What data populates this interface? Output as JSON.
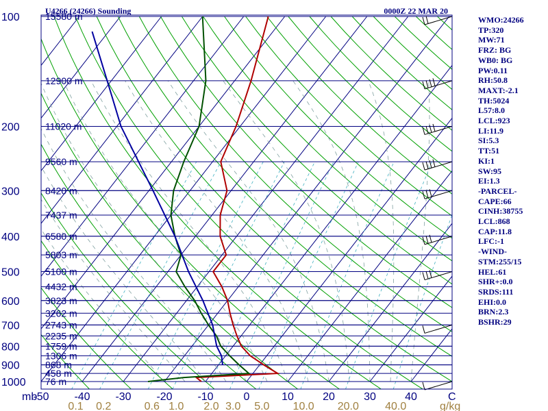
{
  "chart_data": {
    "type": "line",
    "title": "U4266 (24266) Sounding",
    "valid_time": "0000Z 22 MAR 20",
    "pressure_axis": {
      "unit_label": "mb",
      "ticks": [
        100,
        200,
        300,
        400,
        500,
        600,
        700,
        800,
        900,
        1000
      ],
      "range_mb": [
        100,
        1000
      ],
      "scale": "log"
    },
    "temperature_axis": {
      "ticks": [
        -50,
        -40,
        -30,
        -20,
        -10,
        0,
        10,
        20,
        30,
        40
      ],
      "unit_label": "C",
      "range_c_at_surface": [
        -50,
        50
      ]
    },
    "mixing_ratio_axis": {
      "unit_label": "g/kg",
      "ticks": [
        "0.1",
        "0.2",
        "0.6",
        "1.0",
        "2.0",
        "3.0",
        "5.0",
        "10.0",
        "20.0",
        "40.0"
      ]
    },
    "heights": [
      {
        "p": 100,
        "label": "15580 m"
      },
      {
        "p": 150,
        "label": "12900 m"
      },
      {
        "p": 200,
        "label": "11020 m"
      },
      {
        "p": 250,
        "label": "9560 m"
      },
      {
        "p": 300,
        "label": "8420 m"
      },
      {
        "p": 350,
        "label": "7437 m"
      },
      {
        "p": 400,
        "label": "6580 m"
      },
      {
        "p": 450,
        "label": "5803 m"
      },
      {
        "p": 500,
        "label": "5100 m"
      },
      {
        "p": 550,
        "label": "4432 m"
      },
      {
        "p": 600,
        "label": "3823 m"
      },
      {
        "p": 650,
        "label": "3262 m"
      },
      {
        "p": 700,
        "label": "2743 m"
      },
      {
        "p": 750,
        "label": "2235 m"
      },
      {
        "p": 800,
        "label": "1759 m"
      },
      {
        "p": 850,
        "label": "1306 m"
      },
      {
        "p": 900,
        "label": "868 m"
      },
      {
        "p": 950,
        "label": "458 m"
      },
      {
        "p": 1000,
        "label": "76 m"
      }
    ],
    "series": [
      {
        "color": "#b00000",
        "points": [
          [
            1000,
            -11
          ],
          [
            975,
            -13
          ],
          [
            950,
            6
          ],
          [
            900,
            1
          ],
          [
            850,
            -4
          ],
          [
            800,
            -8
          ],
          [
            750,
            -11
          ],
          [
            700,
            -14
          ],
          [
            650,
            -17
          ],
          [
            600,
            -20
          ],
          [
            550,
            -24
          ],
          [
            500,
            -29
          ],
          [
            450,
            -29
          ],
          [
            400,
            -34
          ],
          [
            350,
            -38
          ],
          [
            300,
            -41
          ],
          [
            250,
            -48
          ],
          [
            200,
            -51
          ],
          [
            150,
            -56
          ],
          [
            100,
            -64
          ]
        ]
      },
      {
        "color": "#005000",
        "points": [
          [
            1000,
            -24
          ],
          [
            975,
            -16
          ],
          [
            950,
            -1
          ],
          [
            900,
            -5
          ],
          [
            850,
            -9
          ],
          [
            800,
            -13
          ],
          [
            750,
            -16
          ],
          [
            700,
            -20
          ],
          [
            650,
            -24
          ],
          [
            600,
            -28
          ],
          [
            550,
            -33
          ],
          [
            500,
            -38
          ],
          [
            450,
            -40
          ],
          [
            400,
            -45
          ],
          [
            350,
            -50
          ],
          [
            300,
            -54
          ],
          [
            250,
            -57
          ],
          [
            200,
            -60
          ],
          [
            150,
            -67
          ],
          [
            100,
            -80
          ]
        ]
      },
      {
        "color": "#0000a0",
        "points": [
          [
            900,
            -9
          ],
          [
            850,
            -11
          ],
          [
            800,
            -14
          ],
          [
            700,
            -19
          ],
          [
            600,
            -26
          ],
          [
            500,
            -35
          ],
          [
            400,
            -45
          ],
          [
            300,
            -59
          ],
          [
            250,
            -68
          ],
          [
            200,
            -79
          ],
          [
            150,
            -91
          ],
          [
            110,
            -104
          ]
        ]
      }
    ],
    "wind_barbs": [
      {
        "p": 100,
        "speed": 20
      },
      {
        "p": 150,
        "speed": 40
      },
      {
        "p": 200,
        "speed": 35
      },
      {
        "p": 250,
        "speed": 35
      },
      {
        "p": 300,
        "speed": 30
      },
      {
        "p": 400,
        "speed": 25
      },
      {
        "p": 500,
        "speed": 25
      },
      {
        "p": 700,
        "speed": 10
      },
      {
        "p": 1000,
        "speed": 5
      }
    ]
  },
  "indices": [
    "WMO:24266",
    "TP:320",
    "MW:71",
    "FRZ: BG",
    "WB0: BG",
    "PW:0.11",
    "RH:50.8",
    "MAXT:-2.1",
    "TH:5024",
    "L57:8.0",
    "LCL:923",
    "LI:11.9",
    "SI:5.3",
    "TT:51",
    "KI:1",
    "SW:95",
    "EI:1.3",
    "-PARCEL-",
    "CAPE:66",
    "CINH:38755",
    "LCL:868",
    "CAP:11.8",
    "LFC:-1",
    "-WIND-",
    "STM:255/15",
    "HEL:61",
    "SHR+:0.0",
    "SRDS:111",
    "EHI:0.0",
    "BRN:2.3",
    "BSHR:29"
  ],
  "colors": {
    "isobar": "#000080",
    "isotherm": "#000080",
    "dry_adiabat": "#00a000",
    "moist_adiabat": "#80a0a0",
    "mixing_ratio": "#40b0c0",
    "text_axis": "#000080",
    "mixing_ratio_label": "#a08040"
  }
}
